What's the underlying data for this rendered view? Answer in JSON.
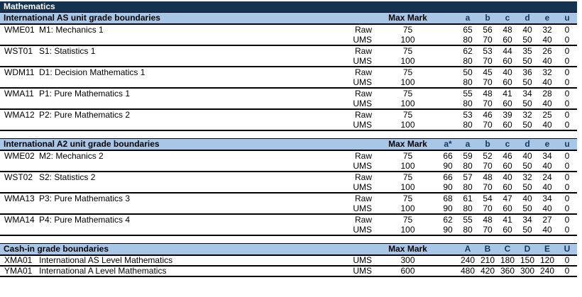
{
  "title": "Mathematics",
  "colors": {
    "title_bar_bg": "#14334E",
    "title_bar_text": "#ffffff",
    "section_header_bg": "#A8C6E5",
    "grade_letter_text": "#17365D",
    "body_text": "#000000"
  },
  "grade_column_slots": 7,
  "sections": [
    {
      "header": "International AS unit grade boundaries",
      "max_mark_label": "Max Mark",
      "grade_labels": [
        "a",
        "b",
        "c",
        "d",
        "e",
        "u"
      ],
      "units": [
        {
          "code": "WME01",
          "title": "M1: Mechanics 1",
          "rows": [
            {
              "type": "Raw",
              "max": 75,
              "values": [
                65,
                56,
                48,
                40,
                32,
                0
              ]
            },
            {
              "type": "UMS",
              "max": 100,
              "values": [
                80,
                70,
                60,
                50,
                40,
                0
              ]
            }
          ]
        },
        {
          "code": "WST01",
          "title": "S1: Statistics 1",
          "rows": [
            {
              "type": "Raw",
              "max": 75,
              "values": [
                62,
                53,
                44,
                35,
                26,
                0
              ]
            },
            {
              "type": "UMS",
              "max": 100,
              "values": [
                80,
                70,
                60,
                50,
                40,
                0
              ]
            }
          ]
        },
        {
          "code": "WDM11",
          "title": "D1: Decision Mathematics 1",
          "rows": [
            {
              "type": "Raw",
              "max": 75,
              "values": [
                50,
                45,
                40,
                36,
                32,
                0
              ]
            },
            {
              "type": "UMS",
              "max": 100,
              "values": [
                80,
                70,
                60,
                50,
                40,
                0
              ]
            }
          ]
        },
        {
          "code": "WMA11",
          "title": "P1: Pure Mathematics 1",
          "rows": [
            {
              "type": "Raw",
              "max": 75,
              "values": [
                55,
                48,
                41,
                34,
                28,
                0
              ]
            },
            {
              "type": "UMS",
              "max": 100,
              "values": [
                80,
                70,
                60,
                50,
                40,
                0
              ]
            }
          ]
        },
        {
          "code": "WMA12",
          "title": "P2: Pure Mathematics 2",
          "rows": [
            {
              "type": "Raw",
              "max": 75,
              "values": [
                53,
                46,
                39,
                32,
                25,
                0
              ]
            },
            {
              "type": "UMS",
              "max": 100,
              "values": [
                80,
                70,
                60,
                50,
                40,
                0
              ]
            }
          ]
        }
      ]
    },
    {
      "header": "International A2 unit grade boundaries",
      "max_mark_label": "Max Mark",
      "grade_labels": [
        "a*",
        "a",
        "b",
        "c",
        "d",
        "e",
        "u"
      ],
      "units": [
        {
          "code": "WME02",
          "title": "M2: Mechanics 2",
          "rows": [
            {
              "type": "Raw",
              "max": 75,
              "values": [
                66,
                59,
                52,
                46,
                40,
                34,
                0
              ]
            },
            {
              "type": "UMS",
              "max": 100,
              "values": [
                90,
                80,
                70,
                60,
                50,
                40,
                0
              ]
            }
          ]
        },
        {
          "code": "WST02",
          "title": "S2: Statistics 2",
          "rows": [
            {
              "type": "Raw",
              "max": 75,
              "values": [
                66,
                57,
                48,
                40,
                32,
                24,
                0
              ]
            },
            {
              "type": "UMS",
              "max": 100,
              "values": [
                90,
                80,
                70,
                60,
                50,
                40,
                0
              ]
            }
          ]
        },
        {
          "code": "WMA13",
          "title": "P3: Pure Mathematics 3",
          "rows": [
            {
              "type": "Raw",
              "max": 75,
              "values": [
                68,
                61,
                54,
                47,
                40,
                34,
                0
              ]
            },
            {
              "type": "UMS",
              "max": 100,
              "values": [
                90,
                80,
                70,
                60,
                50,
                40,
                0
              ]
            }
          ]
        },
        {
          "code": "WMA14",
          "title": "P4: Pure Mathematics 4",
          "rows": [
            {
              "type": "Raw",
              "max": 75,
              "values": [
                62,
                55,
                48,
                41,
                34,
                27,
                0
              ]
            },
            {
              "type": "UMS",
              "max": 100,
              "values": [
                90,
                80,
                70,
                60,
                50,
                40,
                0
              ]
            }
          ]
        }
      ]
    },
    {
      "header": "Cash-in grade boundaries",
      "max_mark_label": "Max Mark",
      "grade_labels": [
        "A",
        "B",
        "C",
        "D",
        "E",
        "U"
      ],
      "cash_in": true,
      "units": [
        {
          "code": "XMA01",
          "title": "International AS Level Mathematics",
          "rows": [
            {
              "type": "UMS",
              "max": 300,
              "values": [
                240,
                210,
                180,
                150,
                120,
                0
              ]
            }
          ]
        },
        {
          "code": "YMA01",
          "title": "International A Level Mathematics",
          "rows": [
            {
              "type": "UMS",
              "max": 600,
              "values": [
                480,
                420,
                360,
                300,
                240,
                0
              ]
            }
          ]
        }
      ]
    }
  ]
}
